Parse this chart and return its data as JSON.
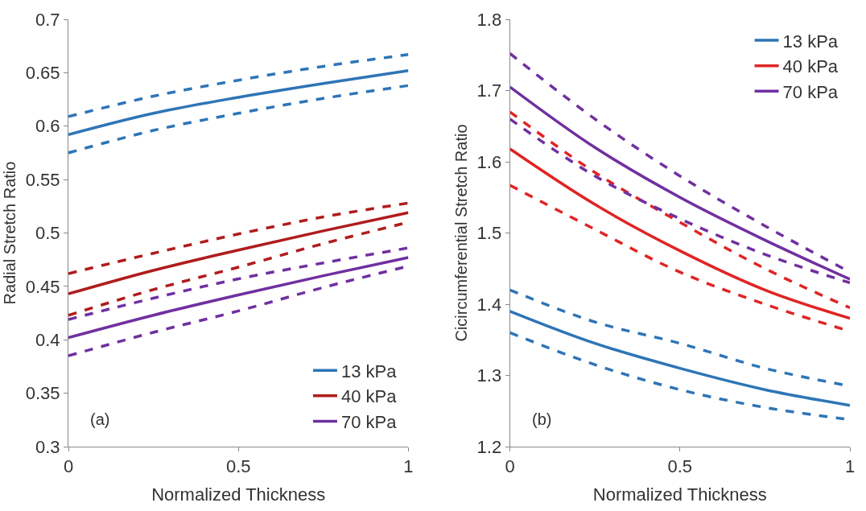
{
  "chart_data": [
    {
      "type": "line",
      "xlabel": "Normalized Thickness",
      "ylabel": "Radial Stretch Ratio",
      "x": [
        0,
        0.25,
        0.5,
        0.75,
        1
      ],
      "xlim": [
        0,
        1
      ],
      "xticks": [
        0,
        0.5,
        1
      ],
      "ylim": [
        0.3,
        0.7
      ],
      "yticks": [
        0.3,
        0.35,
        0.4,
        0.45,
        0.5,
        0.55,
        0.6,
        0.65,
        0.7
      ],
      "legend": "bottom right",
      "annotations": [
        "(a)"
      ],
      "series": [
        {
          "name": "13 kPa",
          "color": "#2e75b6",
          "values": [
            0.592,
            0.612,
            0.627,
            0.64,
            0.652
          ]
        },
        {
          "name": "40 kPa",
          "color": "#b01c1c",
          "values": [
            0.443,
            0.465,
            0.484,
            0.502,
            0.519
          ]
        },
        {
          "name": "70 kPa",
          "color": "#7030a0",
          "values": [
            0.402,
            0.423,
            0.442,
            0.46,
            0.477
          ]
        },
        {
          "color": "#2e75b6",
          "line_style": "dashed",
          "values": [
            0.609,
            0.628,
            0.643,
            0.656,
            0.667
          ]
        },
        {
          "color": "#2e75b6",
          "line_style": "dashed",
          "values": [
            0.575,
            0.596,
            0.612,
            0.626,
            0.638
          ]
        },
        {
          "color": "#b01c1c",
          "line_style": "dashed",
          "values": [
            0.462,
            0.481,
            0.499,
            0.515,
            0.528
          ]
        },
        {
          "color": "#b01c1c",
          "line_style": "dashed",
          "values": [
            0.423,
            0.447,
            0.468,
            0.49,
            0.51
          ]
        },
        {
          "color": "#7030a0",
          "line_style": "dashed",
          "values": [
            0.419,
            0.439,
            0.457,
            0.472,
            0.486
          ]
        },
        {
          "color": "#7030a0",
          "line_style": "dashed",
          "values": [
            0.385,
            0.407,
            0.427,
            0.449,
            0.469
          ]
        }
      ]
    },
    {
      "type": "line",
      "xlabel": "Normalized Thickness",
      "ylabel": "Cicircumferential Stretch Ratio",
      "x": [
        0,
        0.25,
        0.5,
        0.75,
        1
      ],
      "xlim": [
        0,
        1
      ],
      "xticks": [
        0,
        0.5,
        1
      ],
      "ylim": [
        1.2,
        1.8
      ],
      "yticks": [
        1.2,
        1.3,
        1.4,
        1.5,
        1.6,
        1.7,
        1.8
      ],
      "legend": "top right",
      "annotations": [
        "(b)"
      ],
      "series": [
        {
          "name": "13 kPa",
          "color": "#2e75b6",
          "values": [
            1.39,
            1.345,
            1.31,
            1.28,
            1.258
          ]
        },
        {
          "name": "40 kPa",
          "color": "#e02424",
          "values": [
            1.618,
            1.54,
            1.475,
            1.42,
            1.38
          ]
        },
        {
          "name": "70 kPa",
          "color": "#7030a0",
          "values": [
            1.705,
            1.62,
            1.55,
            1.49,
            1.435
          ]
        },
        {
          "color": "#2e75b6",
          "line_style": "dashed",
          "values": [
            1.42,
            1.375,
            1.345,
            1.31,
            1.285
          ]
        },
        {
          "color": "#2e75b6",
          "line_style": "dashed",
          "values": [
            1.36,
            1.315,
            1.28,
            1.255,
            1.238
          ]
        },
        {
          "color": "#e02424",
          "line_style": "dashed",
          "values": [
            1.67,
            1.585,
            1.515,
            1.45,
            1.395
          ]
        },
        {
          "color": "#e02424",
          "line_style": "dashed",
          "values": [
            1.567,
            1.505,
            1.445,
            1.4,
            1.362
          ]
        },
        {
          "color": "#7030a0",
          "line_style": "dashed",
          "values": [
            1.752,
            1.66,
            1.58,
            1.51,
            1.445
          ]
        },
        {
          "color": "#7030a0",
          "line_style": "dashed",
          "values": [
            1.66,
            1.58,
            1.52,
            1.47,
            1.43
          ]
        }
      ]
    }
  ]
}
